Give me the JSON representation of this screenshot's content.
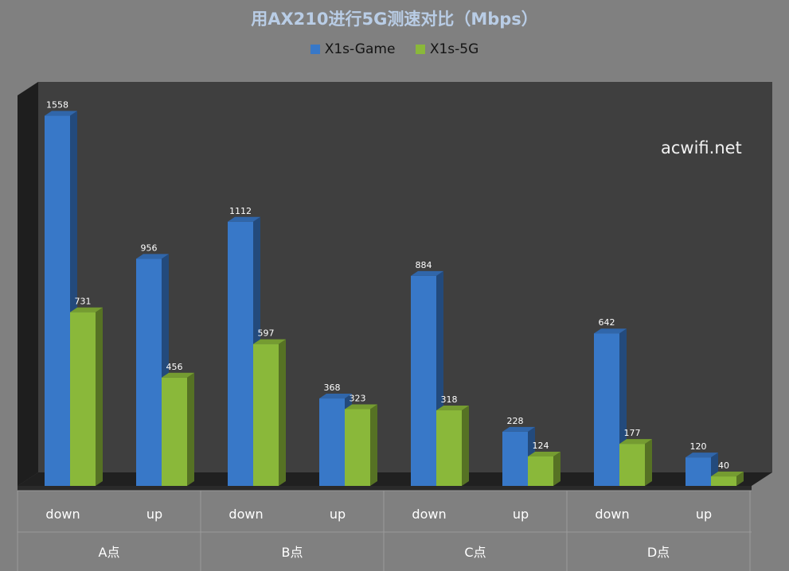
{
  "chart_data": {
    "type": "bar",
    "title": "用AX210进行5G测速对比（Mbps）",
    "watermark": "acwifi.net",
    "groups": [
      "A点",
      "B点",
      "C点",
      "D点"
    ],
    "categories": [
      "down",
      "up",
      "down",
      "up",
      "down",
      "up",
      "down",
      "up"
    ],
    "series": [
      {
        "name": "X1s-Game",
        "color": "#3878c8",
        "values": [
          1558,
          956,
          1112,
          368,
          884,
          228,
          642,
          120
        ]
      },
      {
        "name": "X1s-5G",
        "color": "#8ab83a",
        "values": [
          731,
          456,
          597,
          323,
          318,
          124,
          177,
          40
        ]
      }
    ],
    "ylim": [
      0,
      1600
    ],
    "legend_position": "top",
    "grid": false
  }
}
